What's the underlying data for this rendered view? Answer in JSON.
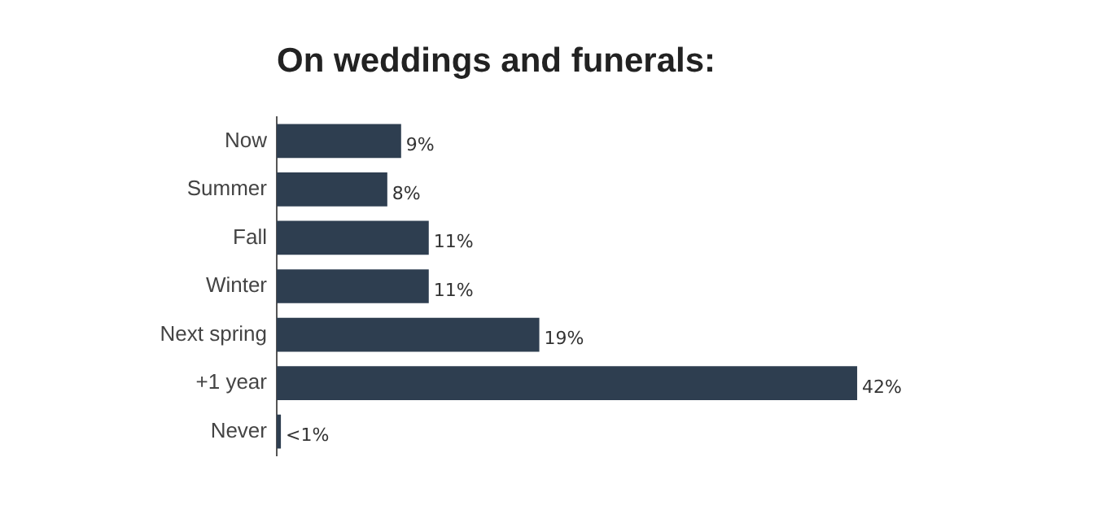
{
  "chart_data": {
    "type": "bar",
    "orientation": "horizontal",
    "title": "On weddings and funerals:",
    "categories": [
      "Now",
      "Summer",
      "Fall",
      "Winter",
      "Next spring",
      "+1 year",
      "Never"
    ],
    "values": [
      9,
      8,
      11,
      11,
      19,
      42,
      0.3
    ],
    "value_labels": [
      "9%",
      "8%",
      "11%",
      "11%",
      "19%",
      "42%",
      "<1%"
    ],
    "color": "#2e3e50",
    "grid": false,
    "legend": false,
    "tick_labels": "y"
  }
}
